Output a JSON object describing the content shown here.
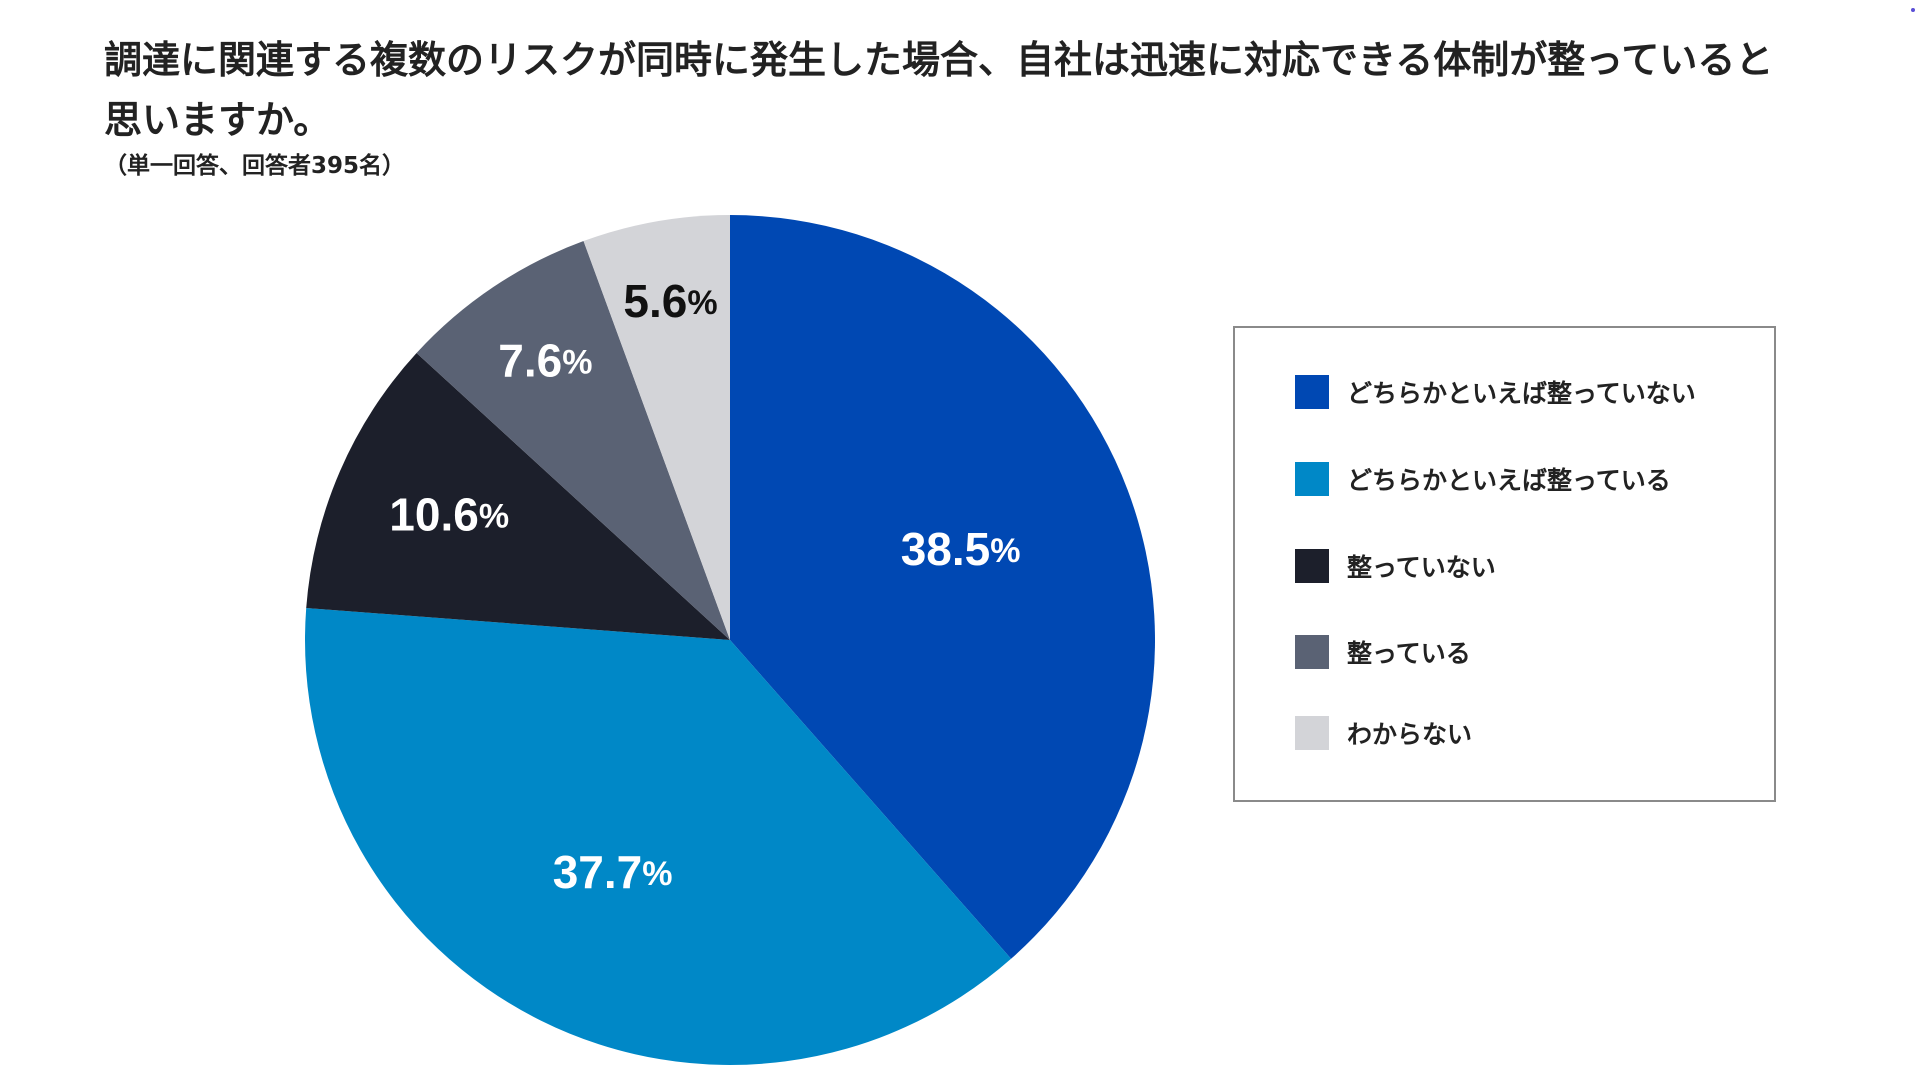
{
  "chart_data": {
    "type": "pie",
    "title": "調達に関連する複数のリスクが同時に発生した場合、自社は迅速に対応できる体制が整っていると思いますか。",
    "subtitle": "（単一回答、回答者395名）",
    "unit": "%",
    "start_angle_deg": 0,
    "direction": "clockwise",
    "slices": [
      {
        "label": "どちらかといえば整っていない",
        "value": 38.5,
        "display": "38.5",
        "color": "#0048b3",
        "label_color": "#ffffff"
      },
      {
        "label": "どちらかといえば整っている",
        "value": 37.7,
        "display": "37.7",
        "color": "#0088c7",
        "label_color": "#ffffff"
      },
      {
        "label": "整っていない",
        "value": 10.6,
        "display": "10.6",
        "color": "#1c1f2b",
        "label_color": "#ffffff"
      },
      {
        "label": "整っている",
        "value": 7.6,
        "display": "7.6",
        "color": "#5a6274",
        "label_color": "#ffffff"
      },
      {
        "label": "わからない",
        "value": 5.6,
        "display": "5.6",
        "color": "#d3d4d8",
        "label_color": "#111111"
      }
    ],
    "legend_position": "right"
  }
}
